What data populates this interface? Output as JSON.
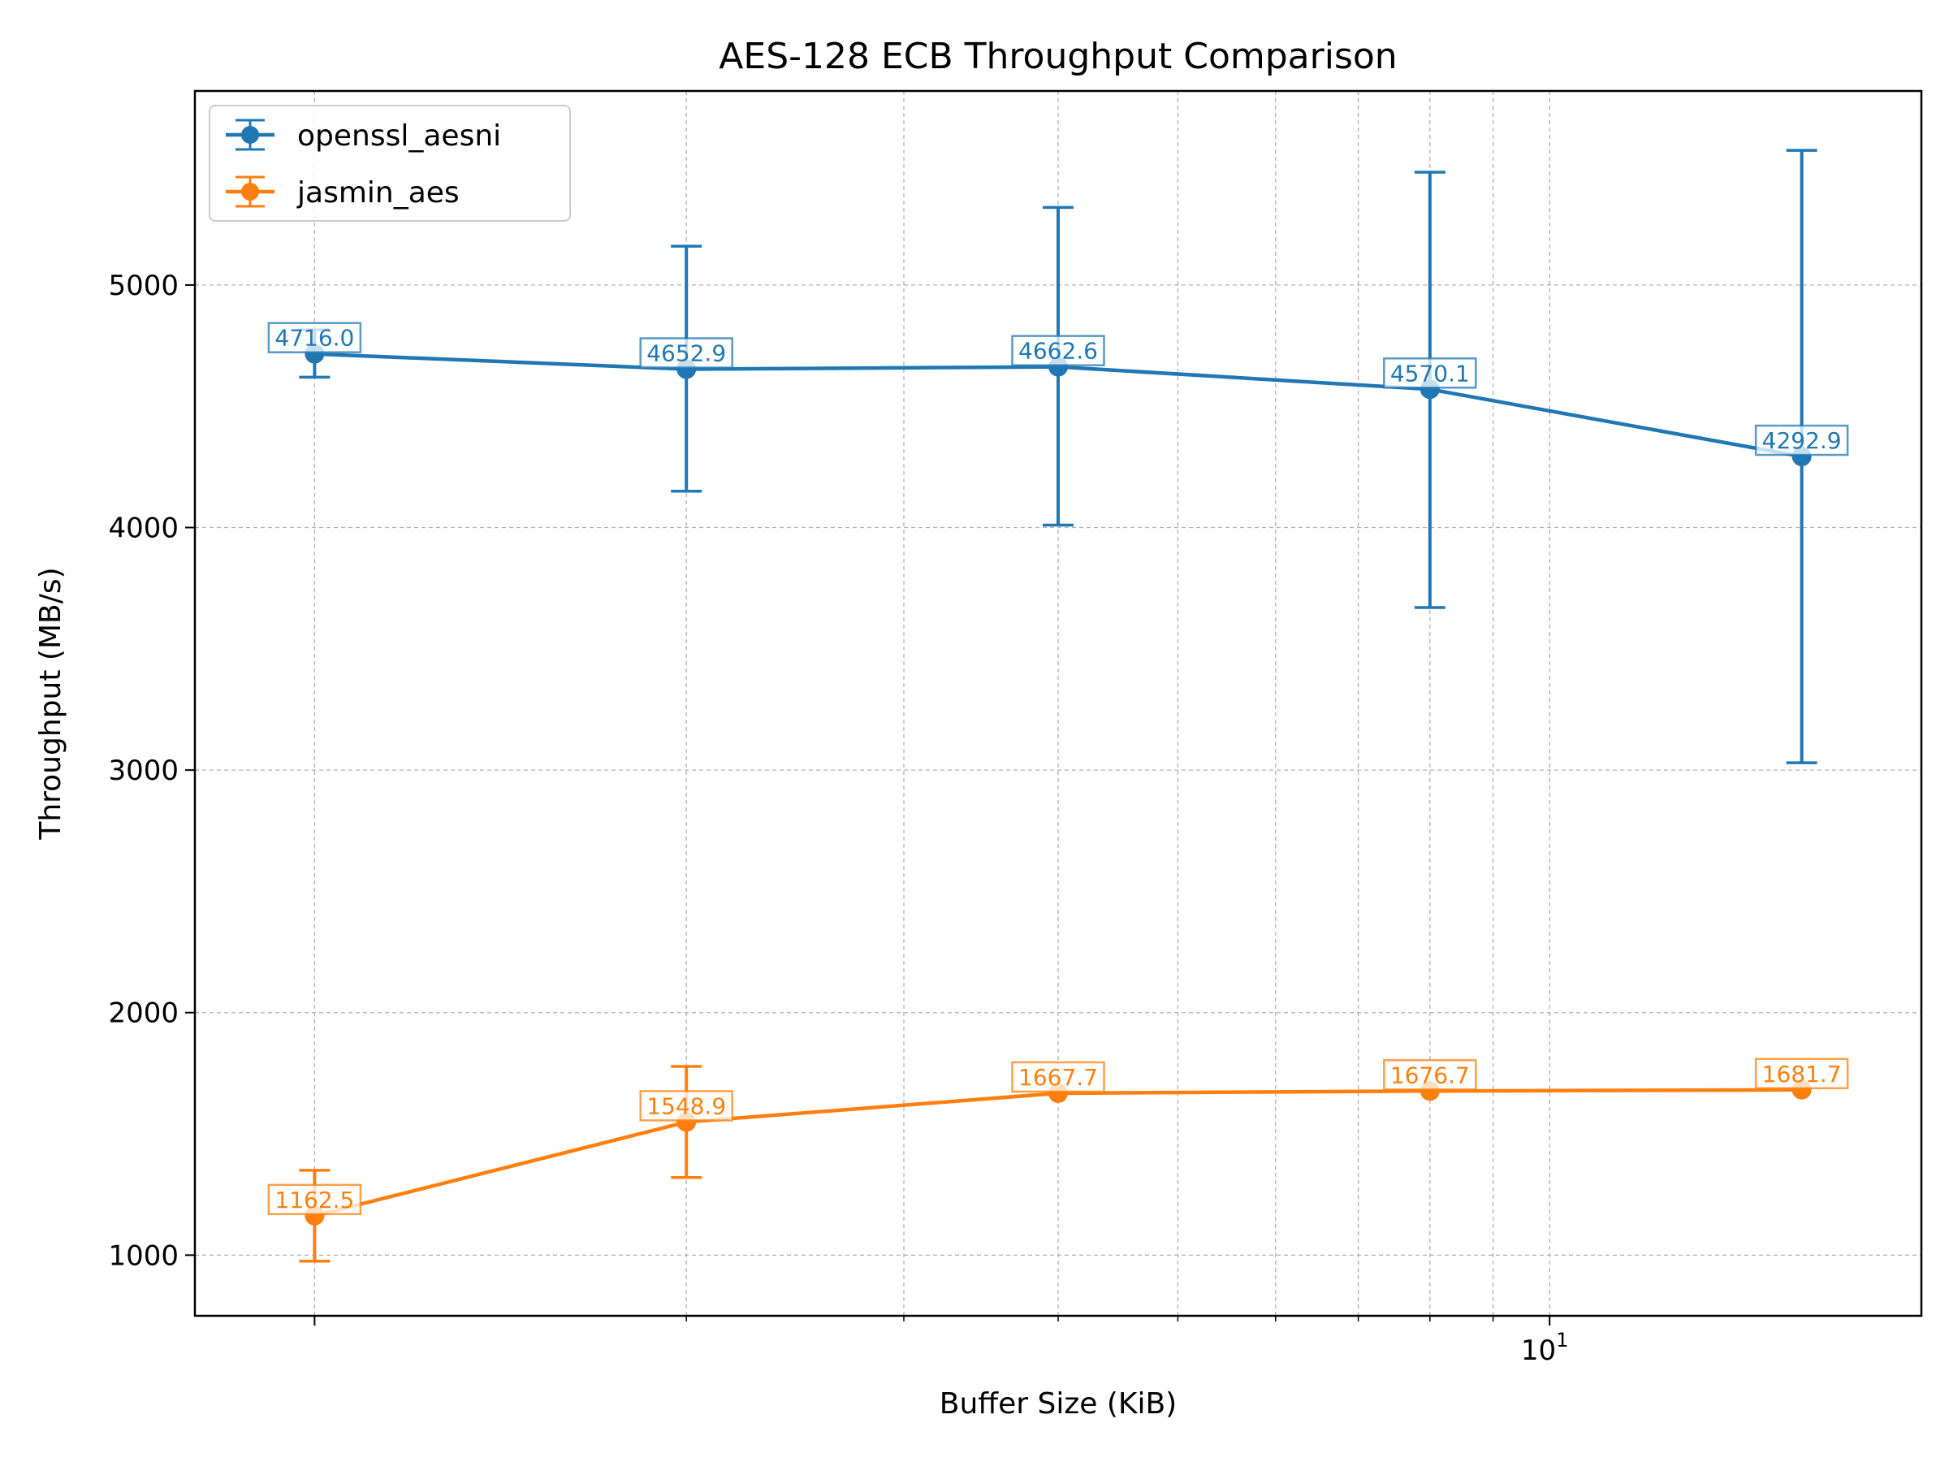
{
  "chart_data": {
    "type": "line",
    "title": "AES-128 ECB Throughput Comparison",
    "xlabel": "Buffer Size (KiB)",
    "ylabel": "Throughput (MB/s)",
    "x_scale": "log",
    "x": [
      1,
      2,
      4,
      8,
      16
    ],
    "x_tick_labels": [
      {
        "value": 10,
        "base": "10",
        "exp": "1"
      }
    ],
    "y_ticks": [
      1000,
      2000,
      3000,
      4000,
      5000
    ],
    "ylim": [
      750,
      5800
    ],
    "grid": true,
    "legend_position": "top-left",
    "series": [
      {
        "name": "openssl_aesni",
        "color": "#1f77b4",
        "values": [
          4716.0,
          4652.9,
          4662.6,
          4570.1,
          4292.9
        ],
        "error_low": [
          4620,
          4150,
          4010,
          3670,
          3030
        ],
        "error_high": [
          4815,
          5160,
          5320,
          5465,
          5555
        ],
        "labels": [
          "4716.0",
          "4652.9",
          "4662.6",
          "4570.1",
          "4292.9"
        ]
      },
      {
        "name": "jasmin_aes",
        "color": "#ff7f0e",
        "values": [
          1162.5,
          1548.9,
          1667.7,
          1676.7,
          1681.7
        ],
        "error_low": [
          975,
          1320,
          null,
          null,
          null
        ],
        "error_high": [
          1350,
          1778,
          null,
          null,
          null
        ],
        "labels": [
          "1162.5",
          "1548.9",
          "1667.7",
          "1676.7",
          "1681.7"
        ]
      }
    ]
  }
}
